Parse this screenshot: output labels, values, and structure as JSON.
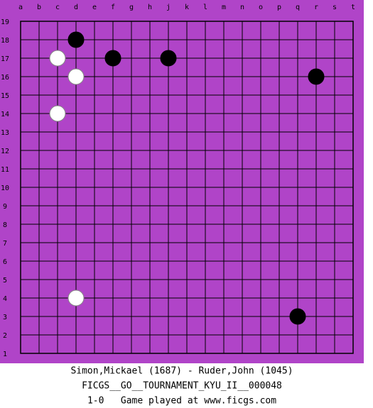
{
  "board": {
    "columns": [
      "a",
      "b",
      "c",
      "d",
      "e",
      "f",
      "g",
      "h",
      "j",
      "k",
      "l",
      "m",
      "n",
      "o",
      "p",
      "q",
      "r",
      "s",
      "t"
    ],
    "rows": [
      19,
      18,
      17,
      16,
      15,
      14,
      13,
      12,
      11,
      10,
      9,
      8,
      7,
      6,
      5,
      4,
      3,
      2,
      1
    ],
    "stones": [
      {
        "color": "black",
        "col": "d",
        "row": 18
      },
      {
        "color": "black",
        "col": "f",
        "row": 17
      },
      {
        "color": "black",
        "col": "j",
        "row": 17
      },
      {
        "color": "black",
        "col": "r",
        "row": 16
      },
      {
        "color": "white",
        "col": "c",
        "row": 17
      },
      {
        "color": "white",
        "col": "d",
        "row": 16
      },
      {
        "color": "white",
        "col": "c",
        "row": 14
      },
      {
        "color": "white",
        "col": "d",
        "row": 4
      },
      {
        "color": "black",
        "col": "q",
        "row": 3
      }
    ]
  },
  "footer": {
    "players": "Simon,Mickael (1687) - Ruder,John (1045)",
    "event": "FICGS__GO__TOURNAMENT_KYU_II__000048",
    "result": "1-0   Game played at www.ficgs.com"
  }
}
